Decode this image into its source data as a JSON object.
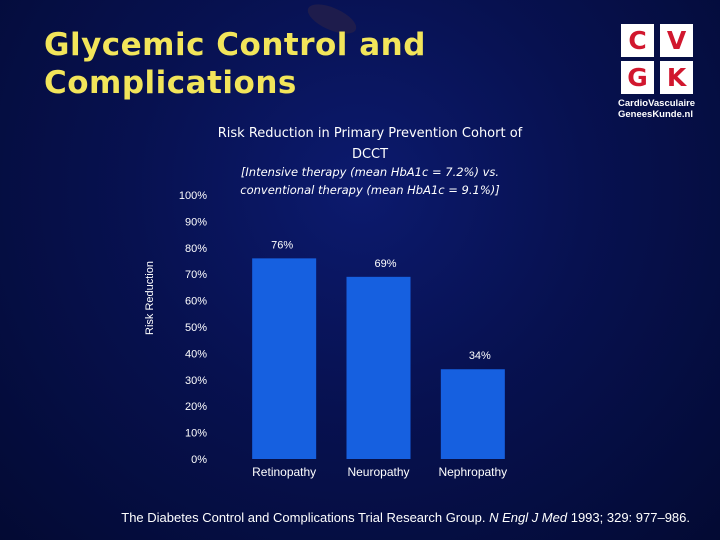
{
  "slide": {
    "title_line1": "Glycemic Control and",
    "title_line2": "Complications",
    "logo": {
      "letters": [
        "C",
        "V",
        "G",
        "K"
      ],
      "line1": "CardioVasculaire",
      "line2": "GeneesKunde.nl"
    },
    "reference_prefix": "The Diabetes Control and Complications Trial Research Group. ",
    "reference_journal": "N Engl J Med",
    "reference_suffix": " 1993; 329: 977–986."
  },
  "colors": {
    "background": "#071150",
    "title": "#f2e55a",
    "bar": "#1660e0",
    "text": "#ffffff",
    "logo_red": "#d1172e"
  },
  "chart_data": {
    "type": "bar",
    "title": "Risk Reduction in Primary Prevention Cohort of DCCT",
    "subtitle": "[Intensive therapy (mean HbA1c = 7.2%) vs. conventional therapy (mean HbA1c = 9.1%)]",
    "ylabel": "Risk Reduction",
    "xlabel": "",
    "categories": [
      "Retinopathy",
      "Neuropathy",
      "Nephropathy"
    ],
    "values": [
      76,
      69,
      34
    ],
    "value_labels": [
      "76%",
      "69%",
      "34%"
    ],
    "ylim": [
      0,
      100
    ],
    "yticks": [
      0,
      10,
      20,
      30,
      40,
      50,
      60,
      70,
      80,
      90,
      100
    ],
    "ytick_labels": [
      "0%",
      "10%",
      "20%",
      "30%",
      "40%",
      "50%",
      "60%",
      "70%",
      "80%",
      "90%",
      "100%"
    ],
    "grid": false,
    "legend": "none"
  }
}
